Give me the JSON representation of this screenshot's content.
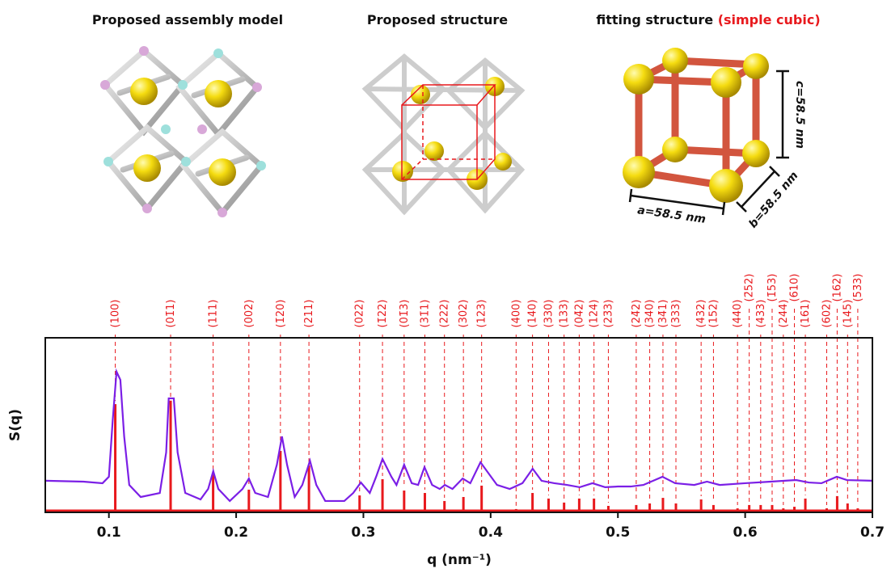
{
  "panels": [
    {
      "title": "Proposed assembly model"
    },
    {
      "title": "Proposed structure"
    },
    {
      "title": "fitting structure",
      "note": "(simple cubic)",
      "dimensions": {
        "a": "a=58.5 nm",
        "b": "b=58.5 nm",
        "c": "c=58.5 nm"
      }
    }
  ],
  "chart_data": {
    "type": "line",
    "x_label": "q (nm⁻¹)",
    "y_label": "S(q)",
    "xlim": [
      0.05,
      0.7
    ],
    "xticks": [
      0.1,
      0.2,
      0.3,
      0.4,
      0.5,
      0.6,
      0.7
    ],
    "ylim": [
      0,
      100
    ],
    "series": [
      {
        "color": "#7b1fe6",
        "x": [
          0.05,
          0.08,
          0.095,
          0.1,
          0.103,
          0.106,
          0.109,
          0.112,
          0.116,
          0.125,
          0.14,
          0.145,
          0.147,
          0.151,
          0.154,
          0.16,
          0.172,
          0.178,
          0.182,
          0.186,
          0.195,
          0.205,
          0.21,
          0.215,
          0.225,
          0.232,
          0.236,
          0.24,
          0.246,
          0.252,
          0.258,
          0.263,
          0.27,
          0.285,
          0.292,
          0.298,
          0.305,
          0.31,
          0.315,
          0.322,
          0.326,
          0.332,
          0.338,
          0.343,
          0.348,
          0.354,
          0.36,
          0.364,
          0.37,
          0.378,
          0.384,
          0.392,
          0.398,
          0.405,
          0.415,
          0.425,
          0.433,
          0.44,
          0.45,
          0.46,
          0.47,
          0.48,
          0.49,
          0.5,
          0.51,
          0.52,
          0.535,
          0.545,
          0.56,
          0.57,
          0.58,
          0.6,
          0.62,
          0.64,
          0.65,
          0.66,
          0.672,
          0.68,
          0.7
        ],
        "values": [
          18.1,
          17.6,
          16.7,
          20.4,
          52.8,
          80.6,
          75.9,
          43.5,
          15.7,
          8.8,
          11.1,
          34.3,
          65.3,
          65.3,
          34.3,
          11.1,
          7.4,
          13.4,
          23.6,
          13.4,
          6.5,
          13.4,
          19.4,
          11.1,
          8.8,
          27.3,
          43.5,
          27.3,
          8.8,
          15.7,
          29.6,
          15.7,
          6.5,
          6.5,
          11.1,
          17.1,
          11.1,
          20.4,
          30.6,
          20.4,
          15.7,
          27.3,
          16.7,
          15.7,
          25.9,
          15.7,
          13.4,
          15.7,
          13.4,
          19.4,
          16.7,
          28.7,
          22.7,
          15.7,
          13.4,
          16.7,
          25.0,
          18.1,
          16.7,
          15.7,
          14.4,
          16.7,
          14.4,
          14.8,
          14.8,
          15.7,
          20.4,
          16.7,
          15.7,
          17.6,
          15.7,
          16.7,
          17.6,
          18.5,
          17.1,
          16.7,
          20.4,
          18.5,
          18.1
        ]
      }
    ],
    "reflections": {
      "color": "#e8191d",
      "labels": [
        "(100)",
        "(01̄1)",
        "(111)",
        "(002)",
        "(1̄20)",
        "(211)",
        "(022)",
        "(1̄22)",
        "(01̄3)",
        "(31̄1)",
        "(222)",
        "(302)",
        "(123)",
        "(400)",
        "(140)",
        "(330)",
        "(133)",
        "(04̄2)",
        "(124)",
        "(23̄3)",
        "(24̄2)",
        "(340)",
        "(34̄1)",
        "(333)",
        "(432)",
        "(152)",
        "(440)",
        "(2̄52)",
        "(433)",
        "(1̄53)",
        "(244)",
        "(6̄10)",
        "(161)",
        "(602)",
        "(162)",
        "(145)",
        "(53̄3)"
      ],
      "q": [
        0.105,
        0.1485,
        0.1819,
        0.21,
        0.2348,
        0.2572,
        0.297,
        0.315,
        0.332,
        0.3483,
        0.3637,
        0.3786,
        0.3929,
        0.42,
        0.4329,
        0.4455,
        0.4577,
        0.4696,
        0.4812,
        0.4925,
        0.5144,
        0.525,
        0.5354,
        0.5456,
        0.5654,
        0.5751,
        0.594,
        0.6032,
        0.6122,
        0.6212,
        0.63,
        0.6387,
        0.6473,
        0.6641,
        0.6723,
        0.6805,
        0.6885
      ],
      "values": [
        62,
        64,
        22.7,
        13,
        35.2,
        26.9,
        9.7,
        19,
        12.5,
        11.1,
        6.5,
        8.8,
        15.3,
        1.9,
        11.1,
        7.9,
        5.6,
        7.9,
        7.9,
        3.7,
        4.2,
        5.1,
        8.3,
        5.1,
        7.4,
        4.2,
        2.3,
        4.2,
        4.2,
        4.2,
        2.3,
        3.2,
        7.9,
        2.3,
        9.3,
        5.1,
        2.3
      ]
    }
  }
}
